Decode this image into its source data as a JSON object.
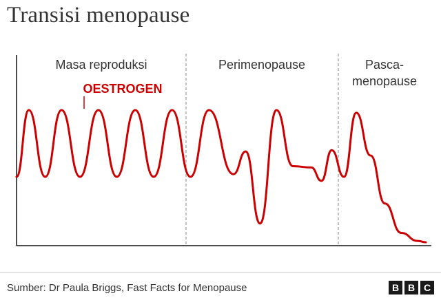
{
  "title": "Transisi menopause",
  "source": "Sumber: Dr Paula Briggs, Fast Facts for Menopause",
  "logo": [
    "B",
    "B",
    "C"
  ],
  "colors": {
    "series": "#cc0000",
    "divider": "#9a9a9a",
    "axis": "#111111"
  },
  "chart_data": {
    "type": "line",
    "title": "Transisi menopause",
    "phases": [
      {
        "lines": [
          "Masa reproduksi"
        ]
      },
      {
        "lines": [
          "Perimenopause"
        ]
      },
      {
        "lines": [
          "Pasca-",
          "menopause"
        ]
      }
    ],
    "series": [
      {
        "name": "OESTROGEN",
        "points": [
          [
            0.0,
            0.5
          ],
          [
            0.03,
            1.0
          ],
          [
            0.07,
            0.5
          ],
          [
            0.11,
            1.0
          ],
          [
            0.155,
            0.5
          ],
          [
            0.2,
            1.0
          ],
          [
            0.245,
            0.5
          ],
          [
            0.29,
            1.0
          ],
          [
            0.335,
            0.5
          ],
          [
            0.38,
            1.0
          ],
          [
            0.425,
            0.5
          ],
          [
            0.47,
            1.0
          ],
          [
            0.53,
            0.52
          ],
          [
            0.56,
            0.69
          ],
          [
            0.595,
            0.15
          ],
          [
            0.635,
            1.0
          ],
          [
            0.675,
            0.58
          ],
          [
            0.72,
            0.57
          ],
          [
            0.745,
            0.47
          ],
          [
            0.77,
            0.7
          ],
          [
            0.8,
            0.5
          ],
          [
            0.83,
            0.98
          ],
          [
            0.865,
            0.66
          ],
          [
            0.9,
            0.3
          ],
          [
            0.94,
            0.08
          ],
          [
            0.98,
            0.02
          ],
          [
            1.0,
            0.01
          ]
        ]
      }
    ],
    "xlim": [
      0,
      1
    ],
    "ylim": [
      0,
      1
    ],
    "grid": false,
    "legend": "inline-label"
  }
}
